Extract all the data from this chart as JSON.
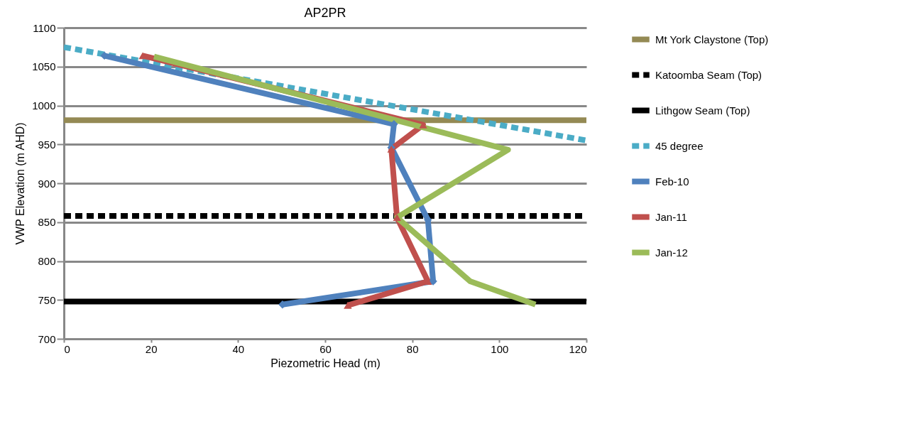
{
  "chart_data": {
    "type": "line",
    "title": "AP2PR",
    "xlabel": "Piezometric Head (m)",
    "ylabel": "VWP Elevation (m AHD)",
    "xlim": [
      0,
      120
    ],
    "xticks": [
      0,
      20,
      40,
      60,
      80,
      100,
      120
    ],
    "ylim": [
      700,
      1100
    ],
    "yticks": [
      700,
      750,
      800,
      850,
      900,
      950,
      1000,
      1050,
      1100
    ],
    "grid": "y",
    "legend": "right",
    "series": [
      {
        "name": "Mt York Claystone (Top)",
        "color": "#948a54",
        "x": [
          0,
          120
        ],
        "values": [
          981,
          981
        ],
        "line_style": "solid",
        "marker": "none"
      },
      {
        "name": "Katoomba Seam (Top)",
        "color": "#000000",
        "x": [
          0,
          120
        ],
        "values": [
          858,
          858
        ],
        "line_style": "dashed",
        "marker": "none"
      },
      {
        "name": "Lithgow Seam (Top)",
        "color": "#000000",
        "x": [
          0,
          120
        ],
        "values": [
          748,
          748
        ],
        "line_style": "solid",
        "marker": "none"
      },
      {
        "name": "45 degree",
        "color": "#4bacc6",
        "x": [
          0,
          120
        ],
        "values": [
          1075,
          955
        ],
        "line_style": "dashed",
        "marker": "none"
      },
      {
        "name": "Feb-10",
        "color": "#4f81bd",
        "x": [
          9.3,
          75.8,
          75.2,
          83.6,
          84.8,
          50.2
        ],
        "values": [
          1064,
          976,
          946,
          853,
          774,
          744
        ],
        "line_style": "solid",
        "marker": "diamond"
      },
      {
        "name": "Jan-11",
        "color": "#c0504d",
        "x": [
          18.1,
          82.5,
          75.2,
          76.5,
          83.6,
          65.2
        ],
        "values": [
          1064,
          975,
          944,
          856,
          774,
          743
        ],
        "line_style": "solid",
        "marker": "triangle"
      },
      {
        "name": "Jan-12",
        "color": "#9bbb59",
        "x": [
          20.7,
          102,
          76.5,
          93.3,
          108.3
        ],
        "values": [
          1063,
          943,
          856,
          774,
          744
        ],
        "line_style": "solid",
        "marker": "none"
      }
    ]
  }
}
